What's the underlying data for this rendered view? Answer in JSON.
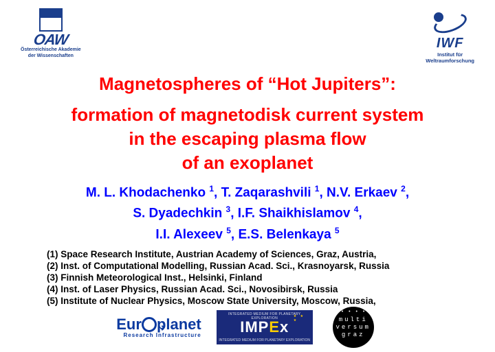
{
  "colors": {
    "title": "#ff0000",
    "authors": "#0000ff",
    "affil": "#000000",
    "logo_blue": "#1a3e8c",
    "impex_bg": "#1a2a7a",
    "impex_accent": "#ffcc00",
    "background": "#ffffff"
  },
  "typography": {
    "family": "Arial",
    "title_size_pt": 20,
    "author_size_pt": 14,
    "affil_size_pt": 10
  },
  "logos": {
    "top_left": {
      "name": "OAW",
      "sub1": "Österreichische Akademie",
      "sub2": "der Wissenschaften"
    },
    "top_right": {
      "name": "IWF",
      "sub1": "Institut für",
      "sub2": "Weltraumforschung"
    },
    "bottom": {
      "europlanet": {
        "left": "Eur",
        "right": "planet",
        "sub": "Research Infrastructure"
      },
      "impex": {
        "top": "INTEGRATED MEDIUM FOR PLANETARY EXPLORATION",
        "main_1": "IMP",
        "main_2": "E",
        "main_3": "x",
        "bot": "INTEGRATED MEDIUM FOR PLANETARY EXPLORATION"
      },
      "multiversum": {
        "l1": "multi",
        "l2": "versum",
        "l3": "graz"
      }
    }
  },
  "title": {
    "l1": "Magnetospheres of “Hot Jupiters”:",
    "l2": "formation of magnetodisk current system",
    "l3": "in the escaping plasma flow",
    "l4": "of an exoplanet"
  },
  "authors": {
    "l1_html": "M. L. Khodachenko <sup>1</sup>, T. Zaqarashvili <sup>1</sup>, N.V. Erkaev <sup>2</sup>,",
    "l2_html": "S. Dyadechkin <sup>3</sup>, I.F. Shaikhislamov <sup>4</sup>,",
    "l3_html": "I.I. Alexeev <sup>5</sup>, E.S. Belenkaya <sup>5</sup>"
  },
  "affiliations": [
    "(1) Space Research Institute, Austrian Academy of Sciences, Graz, Austria,",
    "(2) Inst. of Computational Modelling, Russian Acad. Sci., Krasnoyarsk, Russia",
    "(3) Finnish Meteorological Inst., Helsinki, Finland",
    "(4) Inst. of Laser Physics, Russian Acad. Sci., Novosibirsk, Russia",
    "(5) Institute of Nuclear Physics, Moscow State University, Moscow, Russia,"
  ]
}
